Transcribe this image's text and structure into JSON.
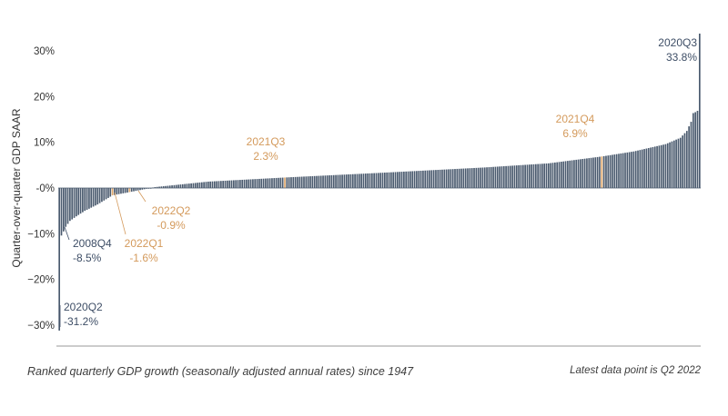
{
  "chart_data": {
    "type": "bar",
    "ylabel": "Quarter-over-quarter GDP SAAR",
    "ylim": [
      -31.2,
      33.8
    ],
    "yticks": [
      "30%",
      "20%",
      "10%",
      "-0%",
      "−10%",
      "−20%",
      "−30%"
    ],
    "ytick_values": [
      30,
      20,
      10,
      0,
      -10,
      -20,
      -30
    ],
    "sorted": "ascending",
    "n_quarters": 302,
    "colors": {
      "bar": "#4a5a6e",
      "highlight": "#e0a96d",
      "annotation_dark": "#3e4e66",
      "annotation_orange": "#d49a5c"
    },
    "highlighted": [
      {
        "label": "2020Q2",
        "value": -31.2,
        "value_text": "-31.2%",
        "rank": 0,
        "color": "dark"
      },
      {
        "label": "2008Q4",
        "value": -8.5,
        "value_text": "-8.5%",
        "rank": 3,
        "color": "dark"
      },
      {
        "label": "2022Q1",
        "value": -1.6,
        "value_text": "-1.6%",
        "rank": 25,
        "color": "orange"
      },
      {
        "label": "2022Q2",
        "value": -0.9,
        "value_text": "-0.9%",
        "rank": 33,
        "color": "orange"
      },
      {
        "label": "2021Q3",
        "value": 2.3,
        "value_text": "2.3%",
        "rank": 106,
        "color": "orange"
      },
      {
        "label": "2021Q4",
        "value": 6.9,
        "value_text": "6.9%",
        "rank": 255,
        "color": "orange"
      },
      {
        "label": "2020Q3",
        "value": 33.8,
        "value_text": "33.8%",
        "rank": 301,
        "color": "dark"
      }
    ]
  },
  "footer": {
    "left": "Ranked quarterly GDP growth (seasonally adjusted annual rates) since 1947",
    "right": "Latest data point is Q2 2022"
  }
}
